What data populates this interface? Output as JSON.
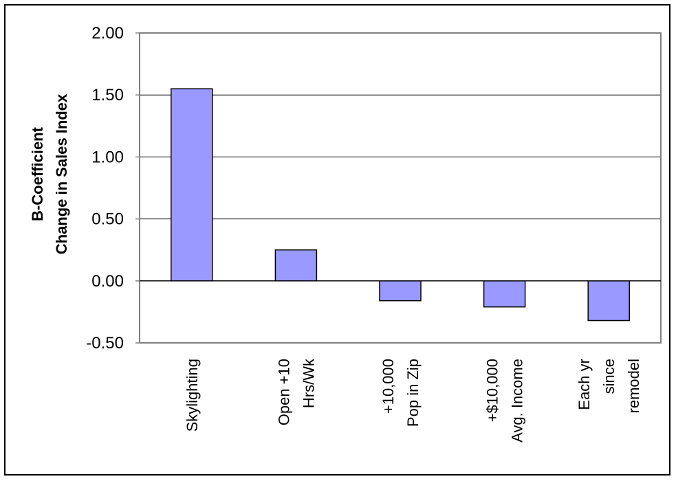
{
  "chart_data": {
    "type": "bar",
    "categories": [
      [
        "Skylighting"
      ],
      [
        "Open +10",
        "Hrs/Wk"
      ],
      [
        "+10,000",
        "Pop in Zip"
      ],
      [
        "+$10,000",
        "Avg. Income"
      ],
      [
        "Each yr",
        "since",
        "remodel"
      ]
    ],
    "values": [
      1.55,
      0.25,
      -0.16,
      -0.21,
      -0.32
    ],
    "ylabel": [
      "B-Coefficient",
      "Change in Sales Index"
    ],
    "ylim": [
      -0.5,
      2.0
    ],
    "yticks": [
      2.0,
      1.5,
      1.0,
      0.5,
      0.0,
      -0.5
    ],
    "ytick_labels": [
      "2.00",
      "1.50",
      "1.00",
      "0.50",
      "0.00",
      "-0.50"
    ],
    "grid": true,
    "bar_color": "#9999ff",
    "bar_edge_color": "#000000",
    "grid_color": "#000000"
  }
}
